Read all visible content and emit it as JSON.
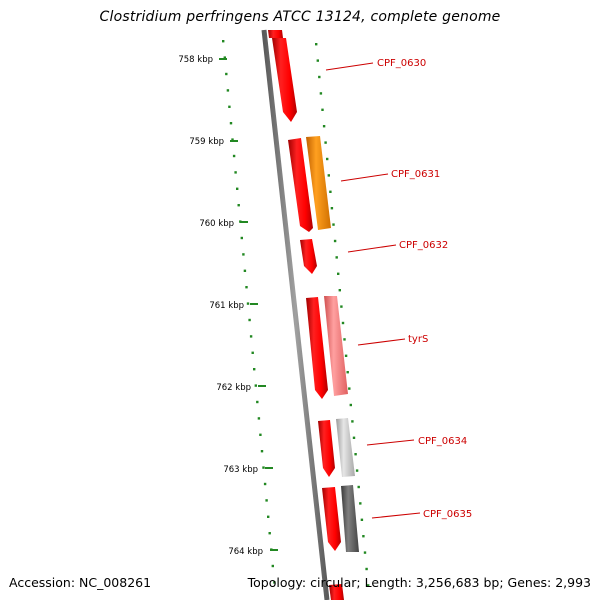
{
  "title": "Clostridium perfringens ATCC 13124, complete genome",
  "footer": {
    "accession": "Accession: NC_008261",
    "summary": "Topology: circular; Length: 3,256,683 bp; Genes: 2,993"
  },
  "colors": {
    "backbone": "#7a7a7a",
    "tick": "#228822",
    "label": "#cc0000",
    "forward_gene": "#ff0000"
  },
  "ticks": [
    {
      "label": "758 kbp"
    },
    {
      "label": "759 kbp"
    },
    {
      "label": "760 kbp"
    },
    {
      "label": "761 kbp"
    },
    {
      "label": "762 kbp"
    },
    {
      "label": "763 kbp"
    },
    {
      "label": "764 kbp"
    }
  ],
  "gene_labels": [
    {
      "name": "CPF_0630"
    },
    {
      "name": "CPF_0631"
    },
    {
      "name": "CPF_0632"
    },
    {
      "name": "tyrS"
    },
    {
      "name": "CPF_0634"
    },
    {
      "name": "CPF_0635"
    }
  ],
  "gene_colors": [
    "#ff0000",
    "#ff8c00",
    "#f08080",
    "#c8c8c8",
    "#666666"
  ]
}
